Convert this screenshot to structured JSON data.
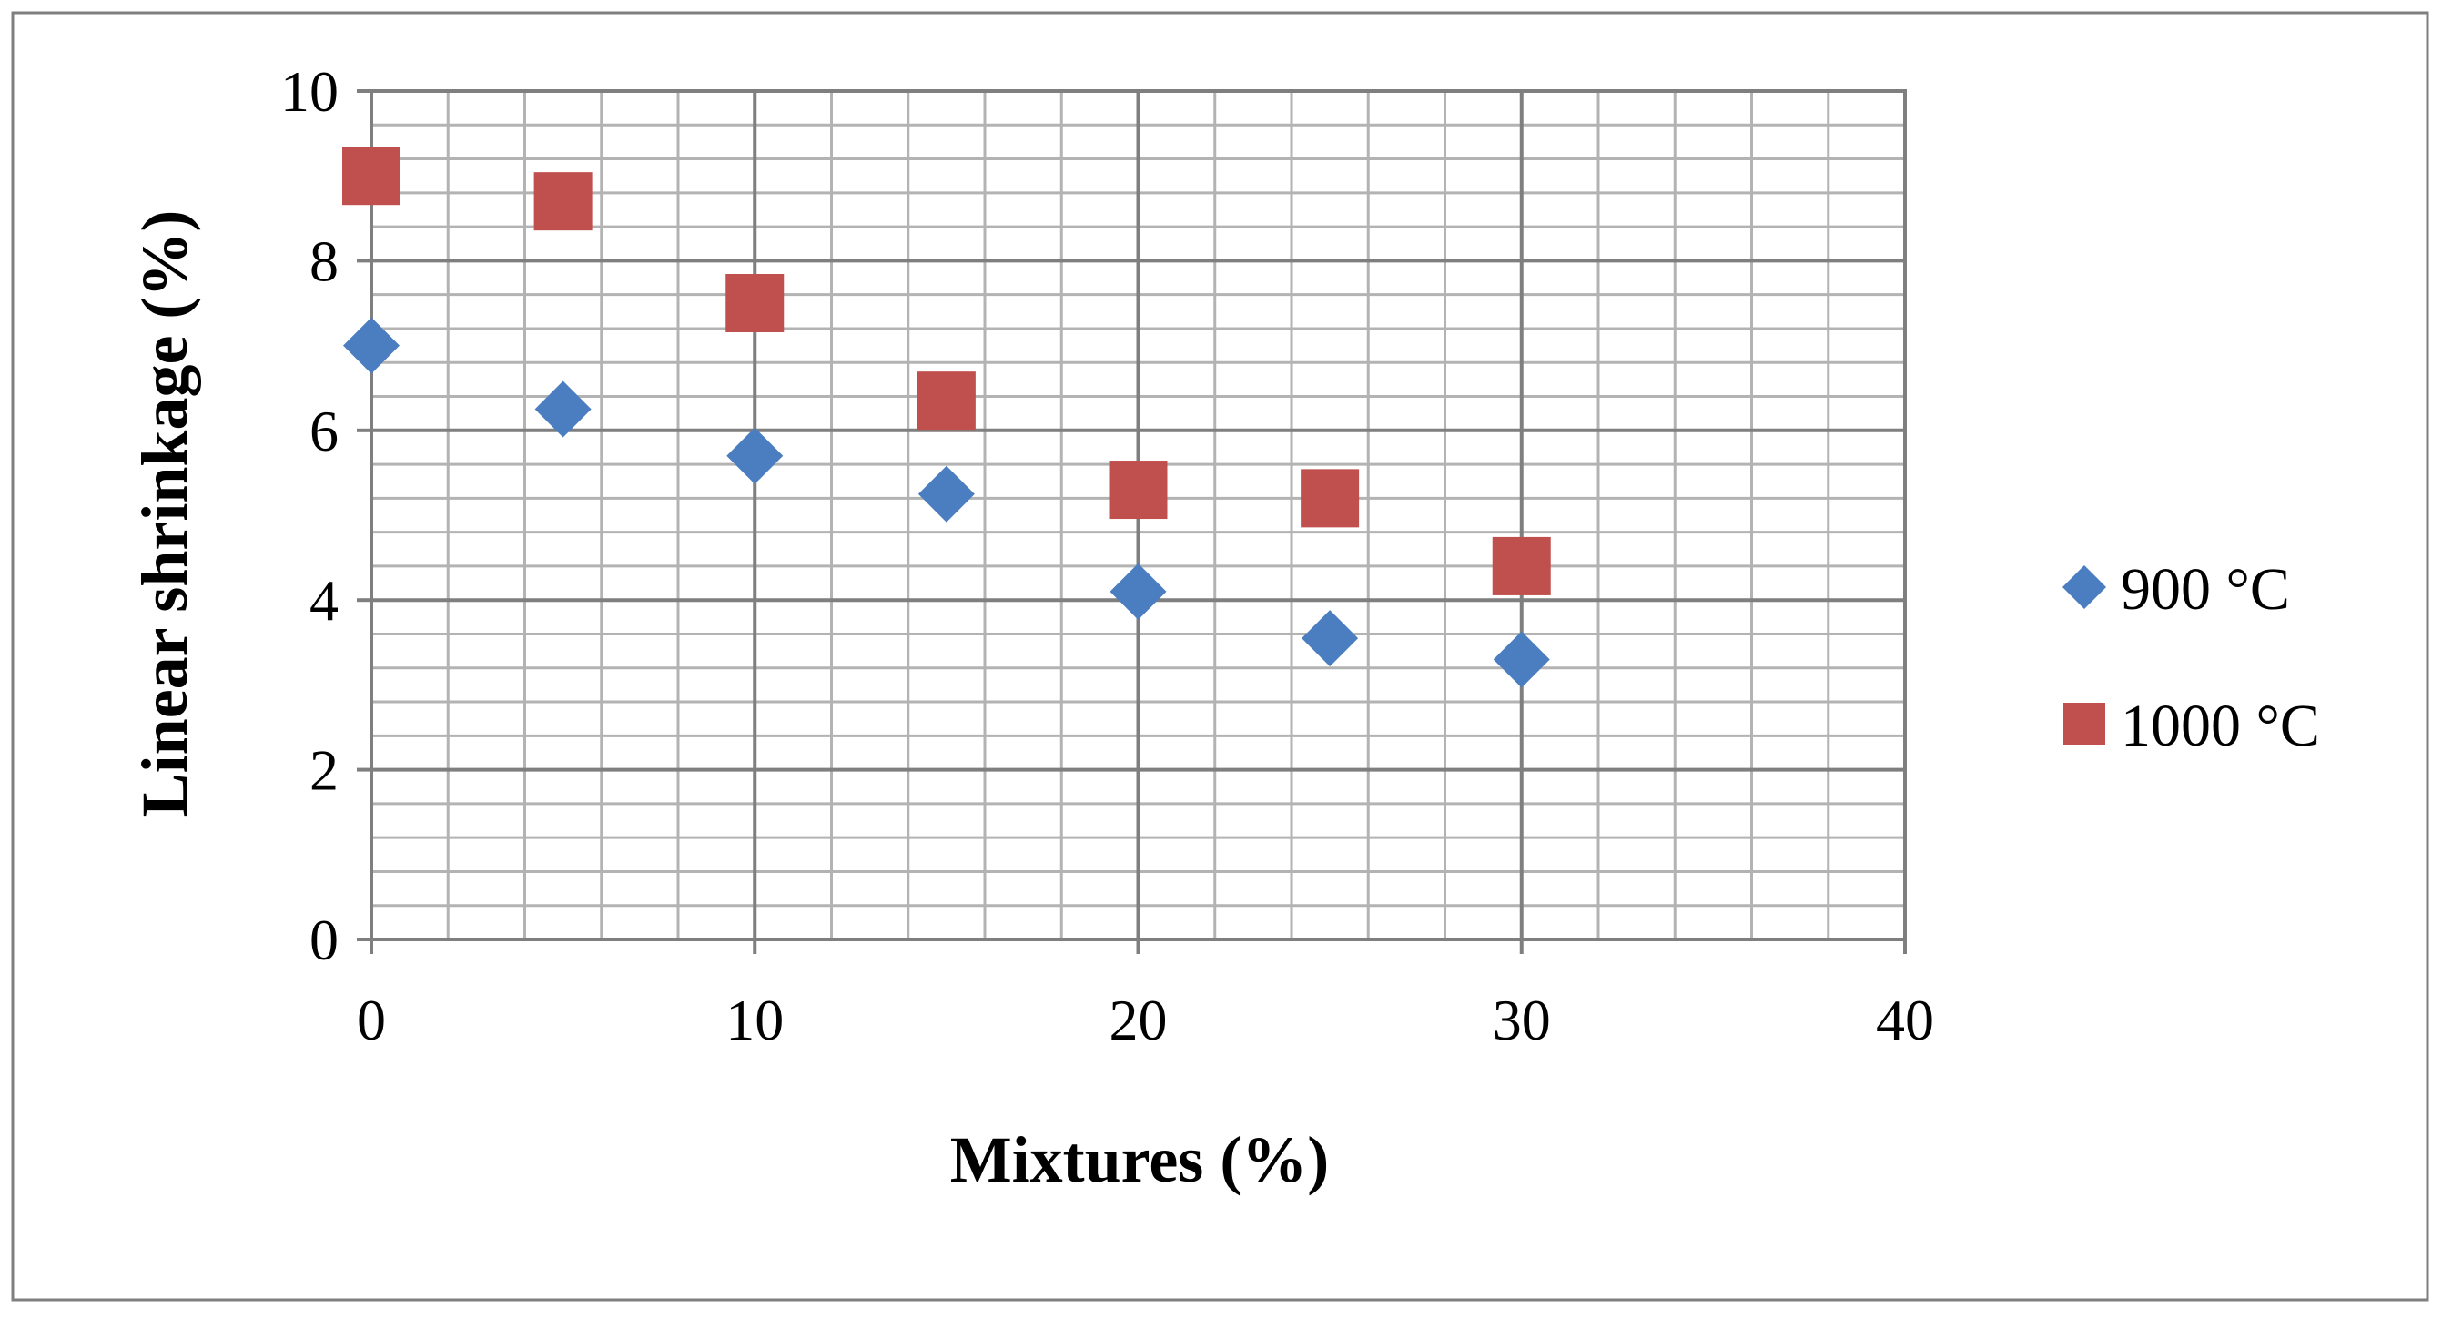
{
  "chart_data": {
    "type": "scatter",
    "title": "",
    "xlabel": "Mixtures (%)",
    "ylabel": "Linear shrinkage (%)",
    "xlim": [
      0,
      40
    ],
    "ylim": [
      0,
      10
    ],
    "x_ticks": [
      0,
      10,
      20,
      30,
      40
    ],
    "y_ticks": [
      0,
      2,
      4,
      6,
      8,
      10
    ],
    "x_minor_step": 2,
    "y_minor_step": 0.4,
    "grid": true,
    "legend_position": "right",
    "series": [
      {
        "name": "900 °C",
        "marker": "diamond",
        "color": "#4a7ec0",
        "x": [
          0,
          5,
          10,
          15,
          20,
          25,
          30
        ],
        "y": [
          7.0,
          6.25,
          5.7,
          5.25,
          4.1,
          3.55,
          3.3
        ]
      },
      {
        "name": "1000 °C",
        "marker": "square",
        "color": "#c0504d",
        "x": [
          0,
          5,
          10,
          15,
          20,
          25,
          30
        ],
        "y": [
          9.0,
          8.7,
          7.5,
          6.35,
          5.3,
          5.2,
          4.4
        ]
      }
    ]
  },
  "colors": {
    "frame": "#7f7f7f",
    "major_grid": "#7f7f7f",
    "minor_grid": "#b3b3b3",
    "text": "#000000"
  }
}
